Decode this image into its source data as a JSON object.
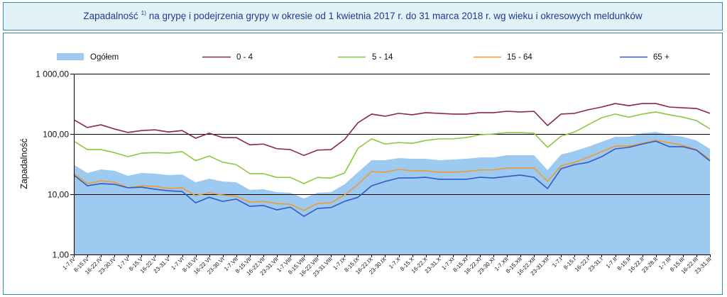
{
  "chart_data": {
    "type": "line",
    "title": {
      "lead": "Zapadalność",
      "footnote_mark": "1)",
      "rest": "na grypę i podejrzenia grypy w okresie od 1 kwietnia 2017 r. do 31 marca 2018 r. wg wieku i okresowych meldunków"
    },
    "ylabel": "Zapadalność",
    "yscale": "log",
    "ylim": [
      1,
      1000
    ],
    "yticks": [
      1,
      10,
      100,
      1000
    ],
    "ytick_labels": [
      "1,00",
      "10,00",
      "100,00",
      "1 000,00"
    ],
    "grid": true,
    "legend": "top",
    "categories": [
      "1-7.IV",
      "8-15.IV",
      "16-22.IV",
      "23-30.IV",
      "1-7.V",
      "8-15.V",
      "16-22.V",
      "23-31.V",
      "1-7.VI",
      "8-15.VI",
      "16-22.VI",
      "23-30.VI",
      "1-7.VII",
      "8-15.VII",
      "16-22.VII",
      "23-31.VII",
      "1-7.VIII",
      "8-15.VIII",
      "16-22.VIII",
      "23-31.VIII",
      "1-7.IX",
      "8-15.IX",
      "16-22.IX",
      "23-30.IX",
      "1-7.X",
      "8-15.X",
      "16-22.X",
      "23-31.X",
      "1-7.XI",
      "8-15.XI",
      "16-22.XI",
      "23-30.XI",
      "1-7.XII",
      "8-15.XII",
      "16-22.XII",
      "23-31.XII",
      "1-7.I",
      "8-15.I",
      "16-22.I",
      "23-31.I",
      "1-7.II",
      "8-15.II",
      "16-22.II",
      "23-28.II",
      "1-7.III",
      "8-15.III",
      "16-22.III",
      "23-31.III"
    ],
    "series": [
      {
        "name": "Ogółem",
        "type": "area",
        "color": "#9dcaf1",
        "values": [
          31,
          22.5,
          25.8,
          24.5,
          20.2,
          22.5,
          22,
          20.8,
          21.3,
          15.8,
          18.1,
          16.3,
          15.8,
          11.8,
          12.1,
          10.8,
          10.6,
          8.5,
          10.6,
          10.8,
          14.6,
          23.2,
          36.7,
          36.7,
          39.8,
          38.7,
          38.7,
          36.7,
          37.7,
          38.7,
          40.8,
          40.8,
          44.4,
          44.4,
          44.4,
          25.2,
          45.6,
          52,
          61.5,
          74,
          89.6,
          89.6,
          103,
          108,
          97,
          89.6,
          78,
          56.6
        ]
      },
      {
        "name": "0 - 4",
        "type": "line",
        "color": "#8c2350",
        "values": [
          172,
          128,
          142,
          121,
          106,
          114,
          117,
          108,
          114,
          85,
          103,
          87,
          87,
          66,
          68,
          57,
          55,
          44,
          54,
          55,
          81,
          154,
          214,
          197,
          220,
          208,
          226,
          220,
          214,
          214,
          226,
          226,
          238,
          232,
          238,
          138,
          214,
          220,
          252,
          280,
          320,
          295,
          320,
          320,
          280,
          272,
          265,
          220
        ]
      },
      {
        "name": "5 - 14",
        "type": "line",
        "color": "#8cc83c",
        "values": [
          76,
          55,
          55,
          49,
          42,
          48,
          49,
          48,
          51,
          36,
          43,
          34,
          31,
          22,
          22,
          19,
          19,
          15,
          19,
          18.5,
          22.5,
          58,
          83,
          68,
          72,
          70,
          78,
          83,
          83,
          87,
          97,
          100,
          105,
          105,
          103,
          60,
          92,
          108,
          142,
          186,
          214,
          190,
          214,
          232,
          208,
          190,
          167,
          121
        ]
      },
      {
        "name": "15 - 64",
        "type": "line",
        "color": "#f39a2b",
        "values": [
          22,
          15,
          16.7,
          15.8,
          12.8,
          13.8,
          13.5,
          12.4,
          12.8,
          9.5,
          10.6,
          9.7,
          9.2,
          7.4,
          7.6,
          7,
          6.8,
          5.4,
          7,
          7.2,
          9.7,
          14.6,
          23.8,
          23.2,
          25.8,
          24.5,
          24.5,
          23.2,
          23.2,
          23.8,
          25.2,
          25.2,
          27.2,
          27.2,
          27.2,
          16.3,
          29.5,
          33.8,
          40.8,
          50.8,
          63,
          63,
          70,
          78,
          72,
          64.5,
          55,
          37.7
        ]
      },
      {
        "name": "65 +",
        "type": "line",
        "color": "#2e5bc8",
        "values": [
          20.8,
          13.8,
          15,
          14.6,
          12.8,
          13.1,
          12.1,
          11.4,
          11.1,
          7.2,
          8.9,
          7.6,
          8.3,
          6.3,
          6.5,
          5.5,
          6.1,
          4.3,
          5.8,
          6,
          7.6,
          8.9,
          13.8,
          16.3,
          18.6,
          18.6,
          19.1,
          17.7,
          17.7,
          17.7,
          19.1,
          18.6,
          19.7,
          20.8,
          19.1,
          12.4,
          26.5,
          31,
          33.8,
          42,
          56.6,
          60,
          68,
          76,
          61.5,
          61.5,
          54,
          35.6
        ]
      }
    ]
  }
}
